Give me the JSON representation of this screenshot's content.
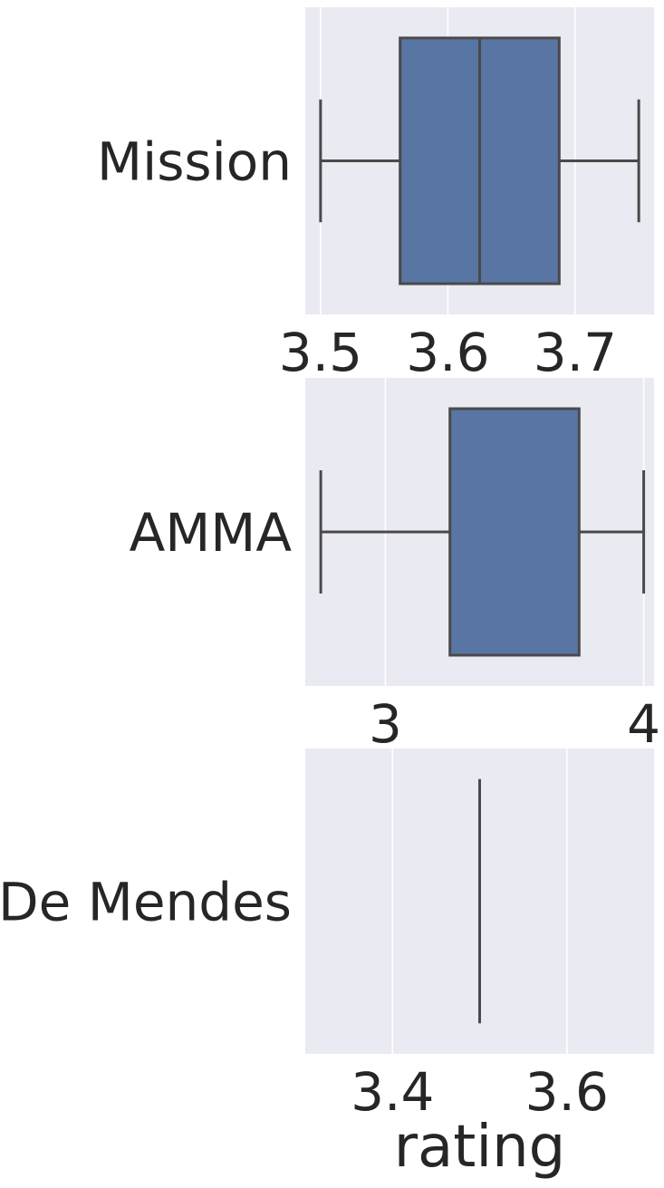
{
  "chart_data": [
    {
      "type": "box",
      "category": "Mission",
      "xlim": [
        3.488,
        3.762
      ],
      "xticks": [
        3.5,
        3.6,
        3.7
      ],
      "tick_labels": [
        "3.5",
        "3.6",
        "3.7"
      ],
      "box": {
        "whisker_low": 3.5,
        "q1": 3.5625,
        "median": 3.625,
        "q3": 3.6875,
        "whisker_high": 3.75
      },
      "xlabel": ""
    },
    {
      "type": "box",
      "category": "AMMA",
      "xlim": [
        2.69,
        4.04
      ],
      "xticks": [
        3,
        4
      ],
      "tick_labels": [
        "3",
        "4"
      ],
      "box": {
        "whisker_low": 2.75,
        "q1": 3.25,
        "median": 3.75,
        "q3": 3.75,
        "whisker_high": 4.0
      },
      "xlabel": ""
    },
    {
      "type": "box",
      "category": "De Mendes",
      "xlim": [
        3.3,
        3.7
      ],
      "xticks": [
        3.4,
        3.6
      ],
      "tick_labels": [
        "3.4",
        "3.6"
      ],
      "box": {
        "whisker_low": 3.5,
        "q1": 3.5,
        "median": 3.5,
        "q3": 3.5,
        "whisker_high": 3.5
      },
      "xlabel": "rating"
    }
  ]
}
